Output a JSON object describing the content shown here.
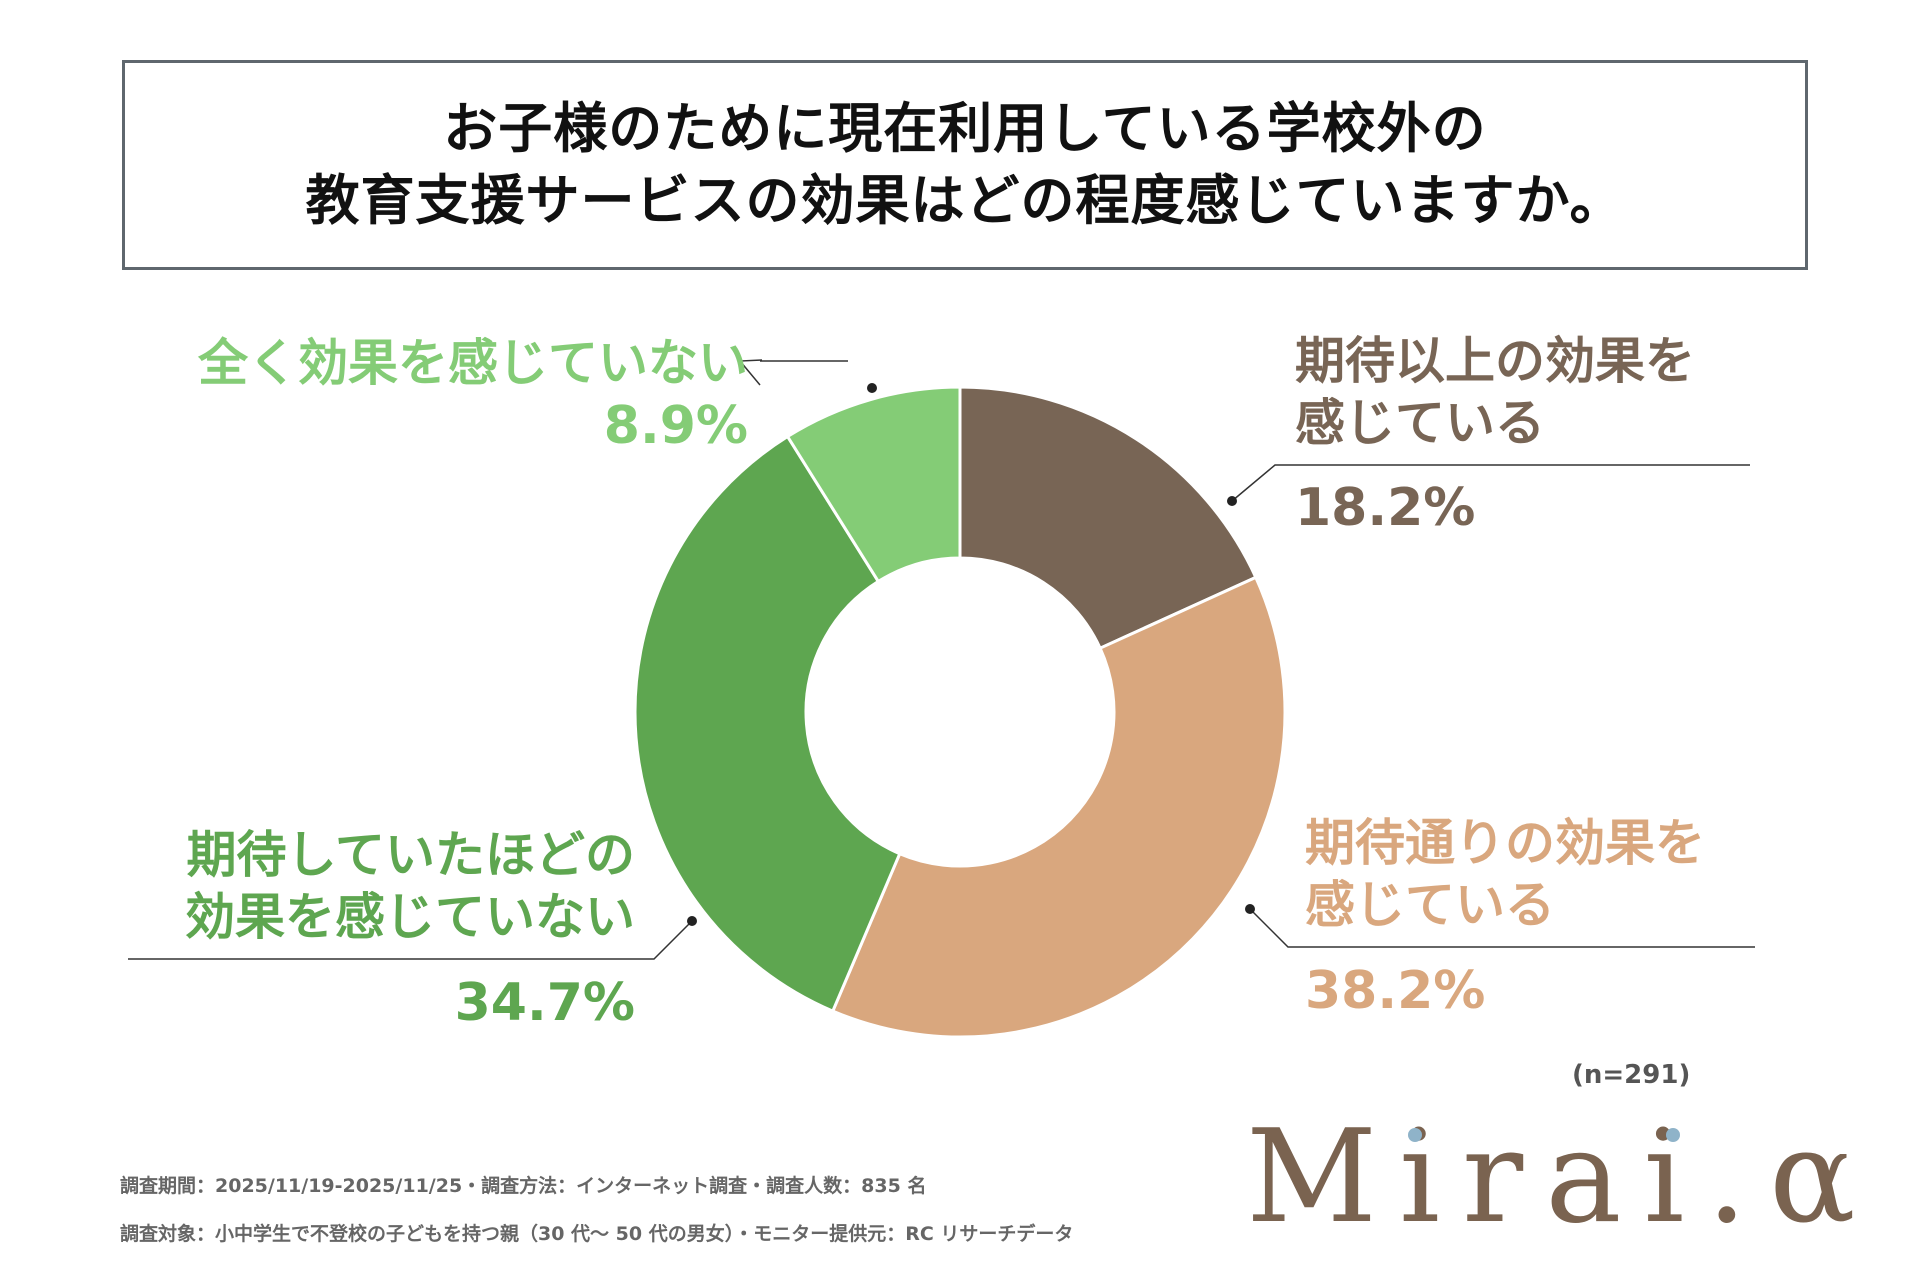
{
  "title": {
    "line1": "お子様のために現在利用している学校外の",
    "line2": "教育支援サービスの効果はどの程度感じていますか。"
  },
  "chart_data": {
    "type": "pie",
    "donut": true,
    "title": "お子様のために現在利用している学校外の教育支援サービスの効果はどの程度感じていますか。",
    "slices": [
      {
        "label_lines": [
          "期待以上の効果を",
          "感じている"
        ],
        "value": 18.2,
        "value_label": "18.2%",
        "color": "#786555"
      },
      {
        "label_lines": [
          "期待通りの効果を",
          "感じている"
        ],
        "value": 38.2,
        "value_label": "38.2%",
        "color": "#d9a77e"
      },
      {
        "label_lines": [
          "期待していたほどの",
          "効果を感じていない"
        ],
        "value": 34.7,
        "value_label": "34.7%",
        "color": "#5ea650"
      },
      {
        "label_lines": [
          "全く効果を感じていない"
        ],
        "value": 8.9,
        "value_label": "8.9%",
        "color": "#84cc76"
      }
    ],
    "legend": "none"
  },
  "sample_size": "(n=291)",
  "footnotes": {
    "line1": "調査期間：2025/11/19-2025/11/25・調査方法：インターネット調査・調査人数：835 名",
    "line2": "調査対象：小中学生で不登校の子どもを持つ親（30 代～ 50 代の男女）・モニター提供元：RC リサーチデータ"
  },
  "logo": {
    "text": "Mirai.α",
    "color": "#7a6350",
    "dot_color": "#8fb3c9"
  }
}
